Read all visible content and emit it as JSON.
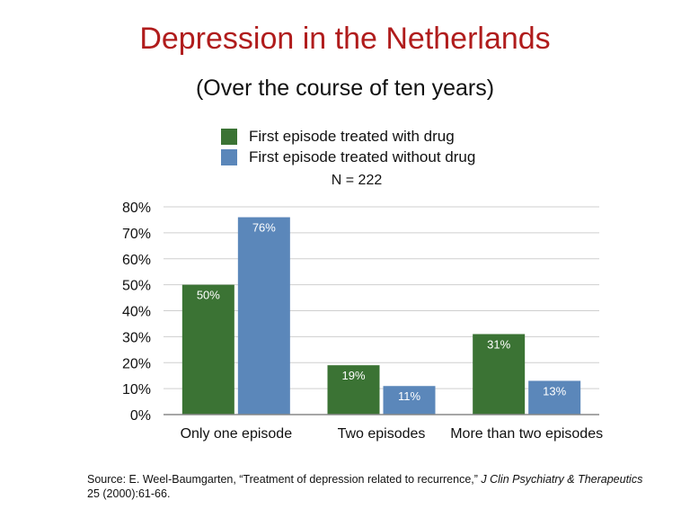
{
  "title": "Depression in the Netherlands",
  "subtitle": "(Over the course of ten years)",
  "n_label": "N =  222",
  "source": {
    "prefix": "Source: E. Weel-Baumgarten, “Treatment of depression related to recurrence,” ",
    "journal": "J Clin Psychiatry & Therapeutics",
    "suffix": " 25 (2000):61-66."
  },
  "chart_data": {
    "type": "bar",
    "categories": [
      "Only one episode",
      "Two episodes",
      "More than two episodes"
    ],
    "series": [
      {
        "name": "First episode treated with drug",
        "values": [
          50,
          19,
          31
        ],
        "labels": [
          "50%",
          "19%",
          "31%"
        ],
        "color": "#3b7334"
      },
      {
        "name": "First episode treated without drug",
        "values": [
          76,
          11,
          13
        ],
        "labels": [
          "76%",
          "11%",
          "13%"
        ],
        "color": "#5b87ba"
      }
    ],
    "ylim": [
      0,
      80
    ],
    "yticks": [
      "0%",
      "10%",
      "20%",
      "30%",
      "40%",
      "50%",
      "60%",
      "70%",
      "80%"
    ],
    "grid": true,
    "legend": "top"
  }
}
